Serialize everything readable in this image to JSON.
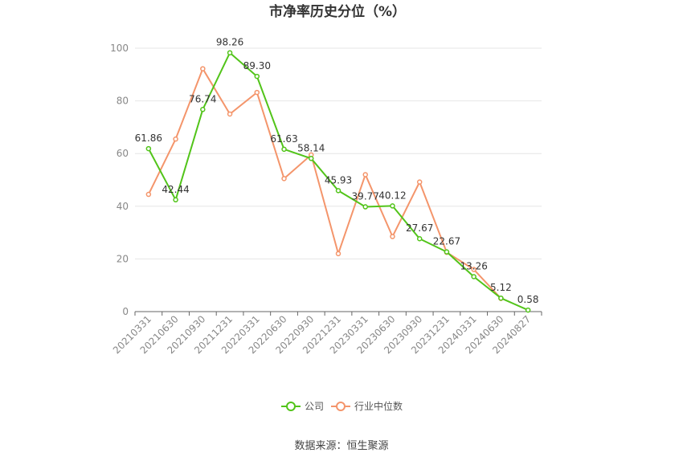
{
  "chart_data": {
    "type": "line",
    "title": "市净率历史分位（%）",
    "source": "数据来源：恒生聚源",
    "ylim": [
      0,
      100
    ],
    "yticks": [
      0,
      20,
      40,
      60,
      80,
      100
    ],
    "grid": true,
    "legend_position": "bottom-center",
    "categories": [
      "20210331",
      "20210630",
      "20210930",
      "20211231",
      "20220331",
      "20220630",
      "20220930",
      "20221231",
      "20230331",
      "20230630",
      "20230930",
      "20231231",
      "20240331",
      "20240630",
      "20240827"
    ],
    "series": [
      {
        "name": "公司",
        "color": "#52c41a",
        "values": [
          61.86,
          42.44,
          76.74,
          98.26,
          89.3,
          61.63,
          58.14,
          45.93,
          39.77,
          40.12,
          27.67,
          22.67,
          13.26,
          5.12,
          0.58
        ],
        "labels": [
          "61.86",
          "42.44",
          "76.74",
          "98.26",
          "89.30",
          "61.63",
          "58.14",
          "45.93",
          "39.77",
          "40.12",
          "27.67",
          "22.67",
          "13.26",
          "5.12",
          "0.58"
        ]
      },
      {
        "name": "行业中位数",
        "color": "#f4956b",
        "values": [
          44.5,
          65.5,
          92.2,
          75.0,
          83.2,
          50.5,
          59.5,
          22.0,
          52.0,
          28.5,
          49.2,
          22.5,
          16.0,
          5.0,
          null
        ]
      }
    ]
  }
}
